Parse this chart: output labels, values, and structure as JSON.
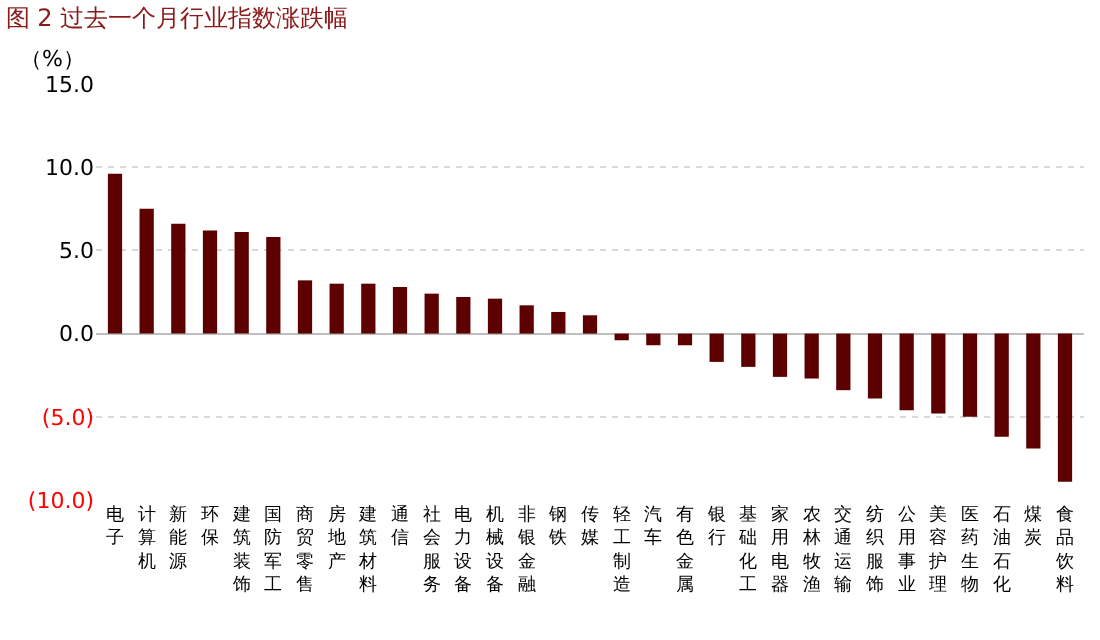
{
  "chart_data": {
    "type": "bar",
    "title": "图 2 过去一个月行业指数涨跌幅",
    "ylabel": "（%）",
    "categories": [
      "电子",
      "计算机",
      "新能源",
      "环保",
      "建筑装饰",
      "国防军工",
      "商贸零售",
      "房地产",
      "建筑材料",
      "通信",
      "社会服务",
      "电力设备",
      "机械设备",
      "非银金融",
      "钢铁",
      "传媒",
      "轻工制造",
      "汽车",
      "有色金属",
      "银行",
      "基础化工",
      "家用电器",
      "农林牧渔",
      "交通运输",
      "纺织服饰",
      "公用事业",
      "美容护理",
      "医药生物",
      "石油石化",
      "煤炭",
      "食品饮料"
    ],
    "values": [
      9.6,
      7.5,
      6.6,
      6.2,
      6.1,
      5.8,
      3.2,
      3.0,
      3.0,
      2.8,
      2.4,
      2.2,
      2.1,
      1.7,
      1.3,
      1.1,
      -0.4,
      -0.7,
      -0.7,
      -1.7,
      -2.0,
      -2.6,
      -2.7,
      -3.4,
      -3.9,
      -4.6,
      -4.8,
      -5.0,
      -6.2,
      -6.9,
      -8.9
    ],
    "color": "#5c0000",
    "ylim": [
      -10,
      15
    ],
    "yticks": [
      {
        "value": -10,
        "label": "(10.0)"
      },
      {
        "value": -5,
        "label": "(5.0)"
      },
      {
        "value": 0,
        "label": "0.0"
      },
      {
        "value": 5,
        "label": "5.0"
      },
      {
        "value": 10,
        "label": "10.0"
      },
      {
        "value": 15,
        "label": "15.0"
      }
    ],
    "grid": "y",
    "legend": false
  }
}
